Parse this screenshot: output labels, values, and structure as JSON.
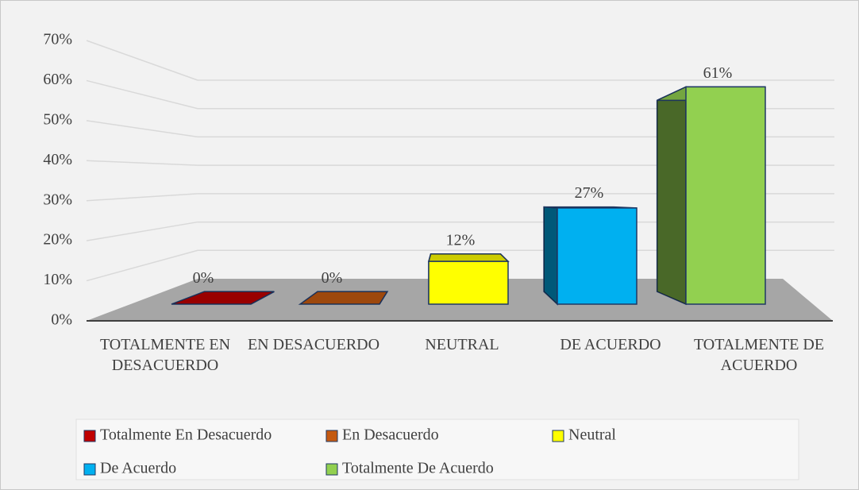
{
  "chart_data": {
    "type": "bar3d",
    "categories": [
      "TOTALMENTE EN DESACUERDO",
      "EN DESACUERDO",
      "NEUTRAL",
      "DE ACUERDO",
      "TOTALMENTE DE ACUERDO"
    ],
    "values": [
      0,
      0,
      12,
      27,
      61
    ],
    "value_labels": [
      "0%",
      "0%",
      "12%",
      "27%",
      "61%"
    ],
    "colors": [
      "#c00000",
      "#c55a11",
      "#ffff00",
      "#00b0f0",
      "#92d050"
    ],
    "legend_labels": [
      "Totalmente En Desacuerdo",
      "En Desacuerdo",
      "Neutral",
      "De Acuerdo",
      "Totalmente De Acuerdo"
    ],
    "ylim": [
      0,
      70
    ],
    "yticks": [
      {
        "value": 0,
        "label": "0%"
      },
      {
        "value": 10,
        "label": "10%"
      },
      {
        "value": 20,
        "label": "20%"
      },
      {
        "value": 30,
        "label": "30%"
      },
      {
        "value": 40,
        "label": "40%"
      },
      {
        "value": 50,
        "label": "50%"
      },
      {
        "value": 60,
        "label": "60%"
      },
      {
        "value": 70,
        "label": "70%"
      }
    ],
    "grid": true
  }
}
